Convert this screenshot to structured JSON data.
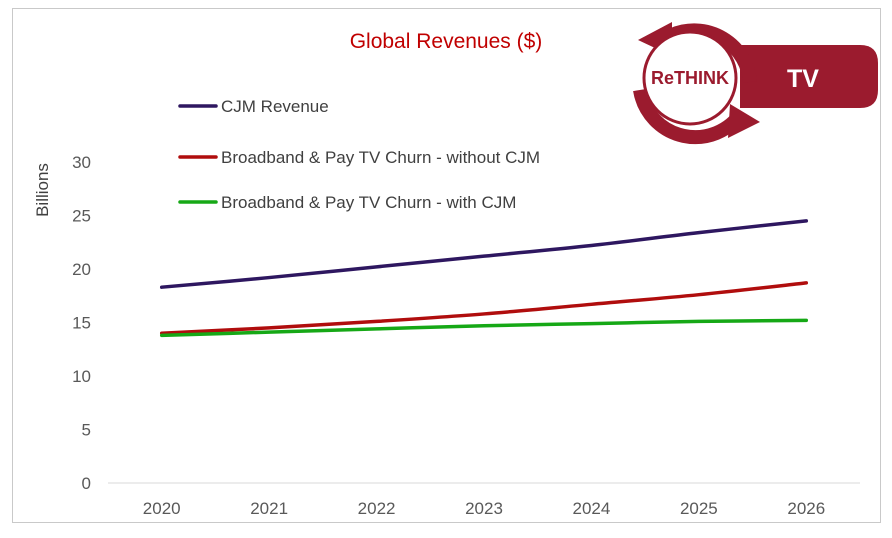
{
  "chart_data": {
    "type": "line",
    "title": "Global Revenues ($)",
    "xlabel": "",
    "ylabel": "Billions",
    "categories": [
      "2020",
      "2021",
      "2022",
      "2023",
      "2024",
      "2025",
      "2026"
    ],
    "ylim": [
      0,
      30
    ],
    "yticks": [
      0,
      5,
      10,
      15,
      20,
      25,
      30
    ],
    "grid": false,
    "legend_position": "top-left",
    "series": [
      {
        "name": "CJM Revenue",
        "color": "#2e1760",
        "values": [
          18.3,
          19.2,
          20.2,
          21.2,
          22.2,
          23.4,
          24.5
        ]
      },
      {
        "name": "Broadband & Pay TV Churn - without CJM",
        "color": "#b00d0d",
        "values": [
          14.0,
          14.5,
          15.1,
          15.8,
          16.7,
          17.6,
          18.7
        ]
      },
      {
        "name": "Broadband & Pay TV Churn - with CJM",
        "color": "#16a816",
        "values": [
          13.8,
          14.1,
          14.4,
          14.7,
          14.9,
          15.1,
          15.2
        ]
      }
    ]
  },
  "logo": {
    "brand_text": "ReTHINK",
    "tag_text": "TV",
    "color": "#9b1b2e"
  }
}
